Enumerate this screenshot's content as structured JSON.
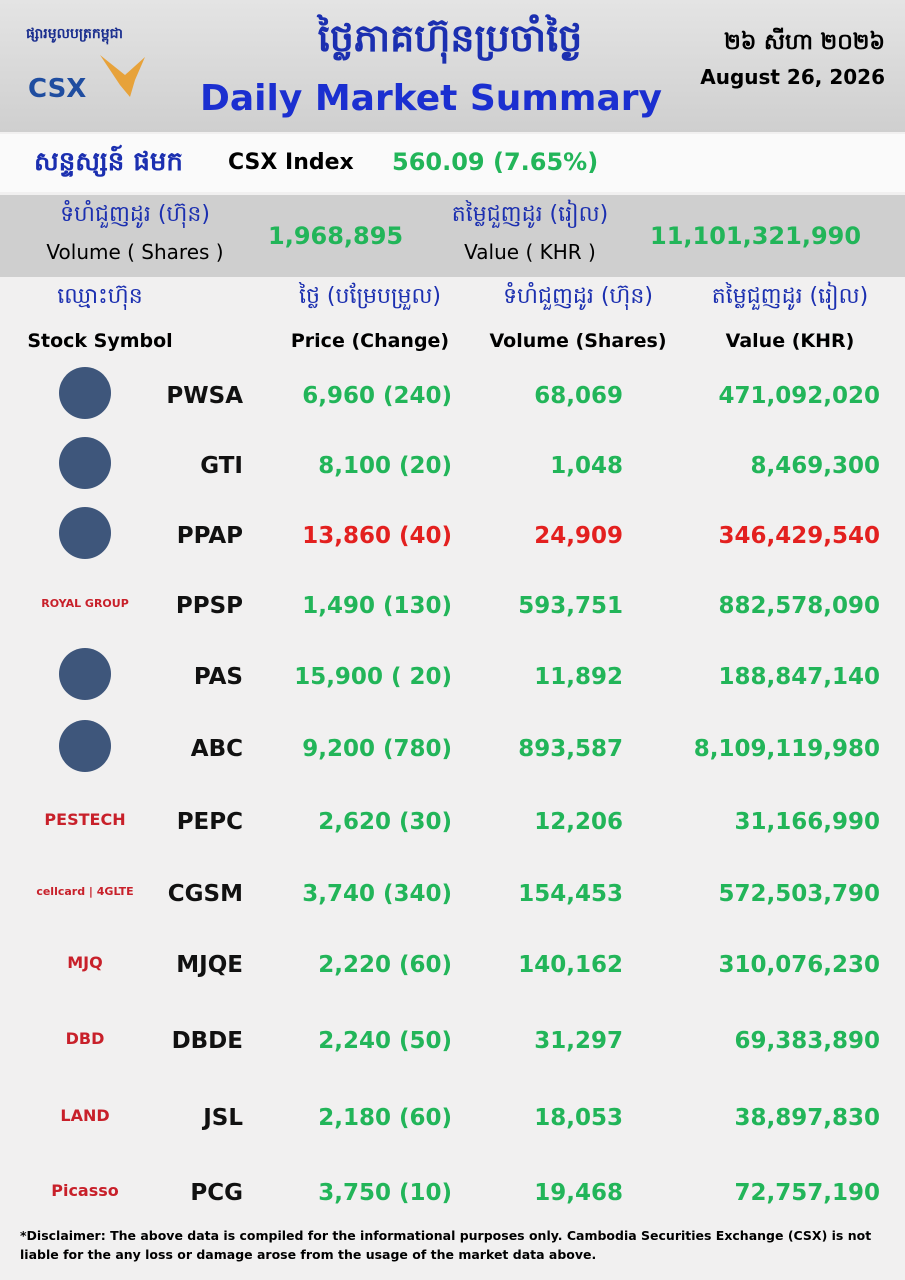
{
  "header": {
    "logo_khmer": "ផ្សារមូលបត្រកម្ពុជា",
    "logo": "CSX",
    "title_khmer": "ថ្លៃភាគហ៊ុនប្រចាំថ្ងៃ",
    "title": "Daily Market Summary",
    "date_khmer": "២៦ សីហា ២០២៦",
    "date": "August 26, 2026"
  },
  "index": {
    "label_khmer": "សន្ទស្សន៍ ផមក",
    "label": "CSX Index",
    "value": "560.09 (7.65%)"
  },
  "totals": {
    "volume_khmer": "ទំហំជួញដូរ (ហ៊ុន)",
    "volume_label": "Volume ( Shares )",
    "volume": "1,968,895",
    "value_khmer": "តម្លៃជួញដូរ (រៀល)",
    "value_label": "Value ( KHR )",
    "value": "11,101,321,990"
  },
  "table": {
    "columns_khmer": [
      "ឈ្មោះហ៊ុន",
      "ថ្លៃ (បម្រែបម្រួល)",
      "ទំហំជួញដូរ (ហ៊ុន)",
      "តម្លៃជួញដូរ (រៀល)"
    ],
    "columns": [
      "Stock Symbol",
      "Price (Change)",
      "Volume (Shares)",
      "Value (KHR)"
    ],
    "rows": [
      {
        "symbol": "PWSA",
        "price": "6,960 (240)",
        "volume": "68,069",
        "value": "471,092,020",
        "color": "#22b559"
      },
      {
        "symbol": "GTI",
        "price": "8,100  (20)",
        "volume": "1,048",
        "value": "8,469,300",
        "color": "#22b559"
      },
      {
        "symbol": "PPAP",
        "price": "13,860  (40)",
        "volume": "24,909",
        "value": "346,429,540",
        "color": "#e3201f"
      },
      {
        "symbol": "PPSP",
        "price": "1,490 (130)",
        "volume": "593,751",
        "value": "882,578,090",
        "color": "#22b559",
        "logo_text": "ROYAL GROUP"
      },
      {
        "symbol": "PAS",
        "price": "15,900 ( 20)",
        "volume": "11,892",
        "value": "188,847,140",
        "color": "#22b559"
      },
      {
        "symbol": "ABC",
        "price": "9,200 (780)",
        "volume": "893,587",
        "value": "8,109,119,980",
        "color": "#22b559"
      },
      {
        "symbol": "PEPC",
        "price": "2,620 (30)",
        "volume": "12,206",
        "value": "31,166,990",
        "color": "#22b559",
        "logo_text": "PESTECH"
      },
      {
        "symbol": "CGSM",
        "price": "3,740 (340)",
        "volume": "154,453",
        "value": "572,503,790",
        "color": "#22b559",
        "logo_text": "cellcard | 4GLTE"
      },
      {
        "symbol": "MJQE",
        "price": "2,220 (60)",
        "volume": "140,162",
        "value": "310,076,230",
        "color": "#22b559",
        "logo_text": "MJQ"
      },
      {
        "symbol": "DBDE",
        "price": "2,240 (50)",
        "volume": "31,297",
        "value": "69,383,890",
        "color": "#22b559",
        "logo_text": "DBD"
      },
      {
        "symbol": "JSL",
        "price": "2,180 (60)",
        "volume": "18,053",
        "value": "38,897,830",
        "color": "#22b559",
        "logo_text": "LAND"
      },
      {
        "symbol": "PCG",
        "price": "3,750 (10)",
        "volume": "19,468",
        "value": "72,757,190",
        "color": "#22b559",
        "logo_text": "Picasso"
      }
    ]
  },
  "disclaimer": "*Disclaimer: The above data is compiled for the informational purposes only. Cambodia Securities Exchange (CSX) is not liable for the any loss or damage arose from the usage of the market data above."
}
